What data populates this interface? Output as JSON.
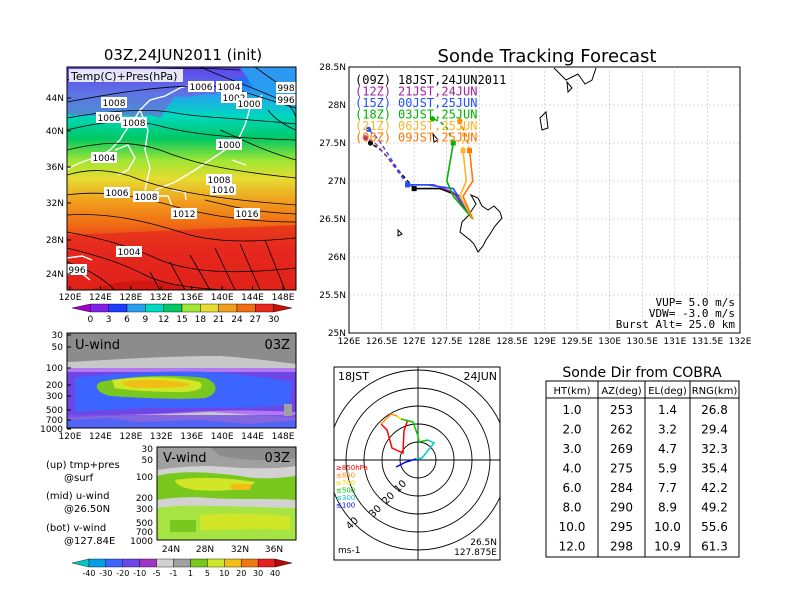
{
  "left_panel": {
    "title": "03Z,24JUN2011 (init)",
    "map_label": "Temp(C)+Pres(hPa)",
    "lat_ticks": [
      "44N",
      "40N",
      "36N",
      "32N",
      "28N",
      "24N"
    ],
    "lon_ticks": [
      "120E",
      "124E",
      "128E",
      "132E",
      "136E",
      "140E",
      "144E",
      "148E"
    ],
    "isobars": [
      "1006",
      "1004",
      "1002",
      "998",
      "996",
      "1008",
      "1006",
      "1000",
      "1008",
      "1004",
      "1000",
      "1008",
      "1006",
      "1008",
      "1010",
      "1012",
      "1016",
      "1004",
      "996"
    ],
    "temp_colorbar_labels": [
      "0",
      "3",
      "6",
      "9",
      "12",
      "15",
      "18",
      "21",
      "24",
      "27",
      "30"
    ],
    "temp_colorbar_colors": [
      "#a000c8",
      "#8020e6",
      "#1e3cff",
      "#28a0f0",
      "#00d8c0",
      "#00c864",
      "#a0e632",
      "#e6dc32",
      "#f0a01e",
      "#f06e14",
      "#e6281e",
      "#c8100a"
    ]
  },
  "u_panel": {
    "label": "U-wind",
    "time": "03Z",
    "pres_ticks": [
      "30",
      "50",
      "100",
      "200",
      "300",
      "500",
      "700",
      "1000"
    ],
    "lon_ticks": [
      "120E",
      "124E",
      "128E",
      "132E",
      "136E",
      "140E",
      "144E",
      "148E"
    ]
  },
  "v_panel": {
    "label": "V-wind",
    "time": "03Z",
    "pres_ticks": [
      "30",
      "50",
      "100",
      "200",
      "300",
      "500",
      "700",
      "1000"
    ],
    "lat_ticks": [
      "24N",
      "28N",
      "32N",
      "36N"
    ]
  },
  "legend_notes": [
    {
      "head": "(up) tmp+pres",
      "sub": "@surf"
    },
    {
      "head": "(mid) u-wind",
      "sub": "@26.50N"
    },
    {
      "head": "(bot) v-wind",
      "sub": "@127.84E"
    }
  ],
  "wind_colorbar": {
    "labels": [
      "-40",
      "-30",
      "-20",
      "-10",
      "-5",
      "-1",
      "1",
      "5",
      "10",
      "20",
      "30",
      "40"
    ],
    "colors": [
      "#00c8c8",
      "#00a0e6",
      "#3c64ff",
      "#6e46e6",
      "#a032c8",
      "#d2d2d2",
      "#a0a0a0",
      "#78c81e",
      "#d2e628",
      "#f0be14",
      "#f07814",
      "#e61e1e",
      "#b40a0a"
    ]
  },
  "chart_data": {
    "type": "line",
    "title": "Sonde Tracking Forecast",
    "ylim": [
      25.0,
      28.5
    ],
    "xlim": [
      126,
      132
    ],
    "lat_ticks": [
      "28.5N",
      "28N",
      "27.5N",
      "27N",
      "26.5N",
      "26N",
      "25.5N",
      "25N"
    ],
    "lon_ticks": [
      "126E",
      "126.5E",
      "127E",
      "127.5E",
      "128E",
      "128.5E",
      "129E",
      "129.5E",
      "130E",
      "130.5E",
      "131E",
      "131.5E",
      "132E"
    ],
    "series": [
      {
        "name": "(09Z)",
        "label": "18JST,24JUN2011",
        "color": "#000000",
        "x": [
          127.9,
          127.7,
          127.4,
          127.0,
          126.7,
          126.5,
          126.33
        ],
        "y": [
          26.5,
          26.8,
          26.9,
          26.9,
          27.2,
          27.4,
          27.5
        ]
      },
      {
        "name": "(12Z)",
        "label": "21JST,24JUN",
        "color": "#a020a0",
        "x": [
          127.9,
          127.6,
          127.3,
          126.9,
          126.6,
          126.4,
          126.25
        ],
        "y": [
          26.5,
          26.85,
          26.95,
          26.95,
          27.3,
          27.5,
          27.57
        ]
      },
      {
        "name": "(15Z)",
        "label": "00JST,25JUN",
        "color": "#2050ff",
        "x": [
          127.9,
          127.6,
          127.2,
          126.9,
          126.6,
          126.45,
          126.3
        ],
        "y": [
          26.5,
          26.9,
          26.95,
          26.95,
          27.35,
          27.55,
          27.68
        ]
      },
      {
        "name": "(18Z)",
        "label": "03JST,25JUN",
        "color": "#00b400",
        "x": [
          127.9,
          127.6,
          127.5,
          127.6,
          127.5,
          127.4,
          127.28
        ],
        "y": [
          26.5,
          26.8,
          27.0,
          27.5,
          27.7,
          27.78,
          27.82
        ]
      },
      {
        "name": "(21Z)",
        "label": "06JST,25JUN",
        "color": "#ffb428",
        "x": [
          127.9,
          127.7,
          127.8,
          127.75,
          127.75,
          127.7
        ],
        "y": [
          26.5,
          26.8,
          27.0,
          27.4,
          27.65,
          27.8
        ]
      },
      {
        "name": "(00Z)",
        "label": "09JST,25JUN",
        "color": "#ff7800",
        "x": [
          127.9,
          127.75,
          127.9,
          127.85,
          127.8,
          127.7
        ],
        "y": [
          26.5,
          26.8,
          27.0,
          27.4,
          27.6,
          27.78
        ]
      }
    ],
    "annotations": {
      "vup": "VUP= 5.0 m/s",
      "vdw": "VDW= -3.0 m/s",
      "burst": "Burst Alt= 25.0 km"
    }
  },
  "hodograph": {
    "time": "18JST",
    "date": "24JUN",
    "ring_labels": [
      "10",
      "20",
      "30",
      "40"
    ],
    "levels": [
      {
        "label": "≥850hPa",
        "color": "#ff0000"
      },
      {
        "label": "≤850",
        "color": "#ff8c00"
      },
      {
        "label": "≤700",
        "color": "#ffd700"
      },
      {
        "label": "≤500",
        "color": "#00c800"
      },
      {
        "label": "≤300",
        "color": "#00c8c8"
      },
      {
        "label": "≤100",
        "color": "#0000ff"
      }
    ],
    "unit": "ms-1",
    "pos_lat": "26.5N",
    "pos_lon": "127.875E"
  },
  "sonde_table": {
    "title": "Sonde Dir from COBRA",
    "headers": [
      "HT(km)",
      "AZ(deg)",
      "EL(deg)",
      "RNG(km)"
    ],
    "rows": [
      [
        "1.0",
        "253",
        "1.4",
        "26.8"
      ],
      [
        "2.0",
        "262",
        "3.2",
        "29.4"
      ],
      [
        "3.0",
        "269",
        "4.7",
        "32.3"
      ],
      [
        "4.0",
        "275",
        "5.9",
        "35.4"
      ],
      [
        "6.0",
        "284",
        "7.7",
        "42.2"
      ],
      [
        "8.0",
        "290",
        "8.9",
        "49.2"
      ],
      [
        "10.0",
        "295",
        "10.0",
        "55.6"
      ],
      [
        "12.0",
        "298",
        "10.9",
        "61.3"
      ]
    ]
  }
}
